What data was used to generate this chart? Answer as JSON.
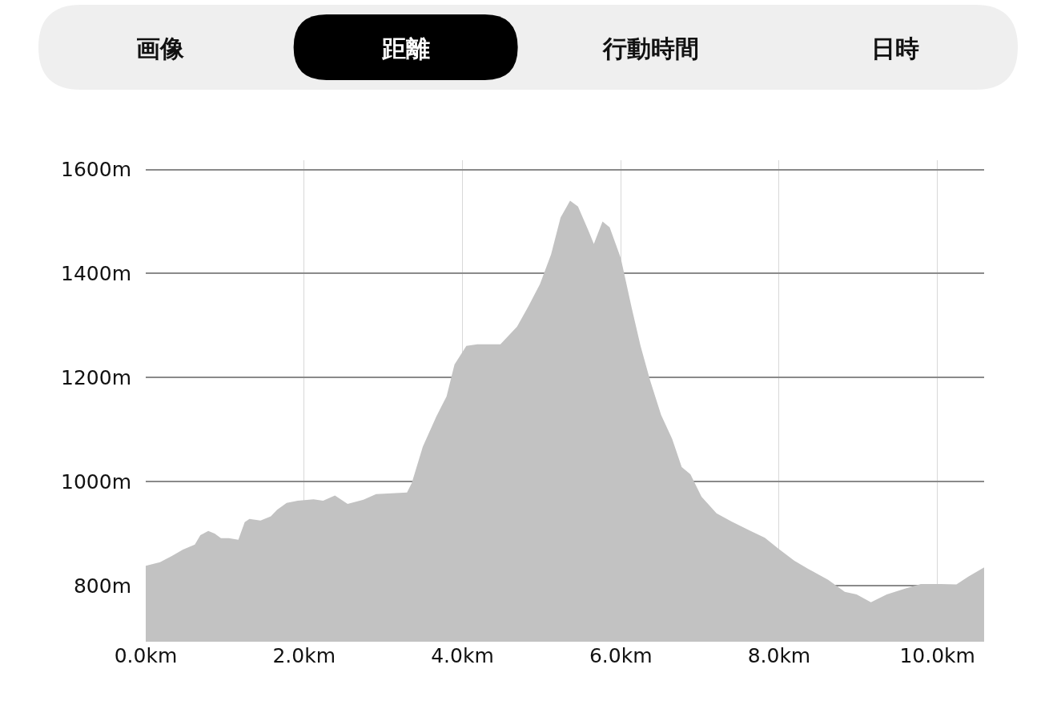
{
  "chart_data": {
    "type": "area",
    "annotations": [
      "画像",
      "距離",
      "行動時間",
      "日時"
    ],
    "x": [
      0,
      0.18,
      0.33,
      0.4,
      0.47,
      0.62,
      0.69,
      0.79,
      0.87,
      0.95,
      1.05,
      1.17,
      1.25,
      1.31,
      1.45,
      1.58,
      1.66,
      1.78,
      1.92,
      2.12,
      2.24,
      2.39,
      2.55,
      2.75,
      2.91,
      3.3,
      3.36,
      3.5,
      3.67,
      3.8,
      3.9,
      4.05,
      4.19,
      4.48,
      4.69,
      4.83,
      4.98,
      5.12,
      5.24,
      5.36,
      5.46,
      5.59,
      5.66,
      5.77,
      5.86,
      6.0,
      6.14,
      6.25,
      6.37,
      6.51,
      6.65,
      6.77,
      6.88,
      7.02,
      7.21,
      7.4,
      7.64,
      7.82,
      7.99,
      8.19,
      8.37,
      8.62,
      8.83,
      8.98,
      9.16,
      9.36,
      9.59,
      9.79,
      10.04,
      10.24,
      10.39,
      10.59
    ],
    "series": [
      {
        "color": "#c2c2c2",
        "values": [
          838,
          845,
          857,
          863,
          869,
          879,
          897,
          905,
          900,
          891,
          891,
          888,
          922,
          928,
          925,
          933,
          946,
          959,
          963,
          966,
          963,
          973,
          957,
          965,
          976,
          979,
          997,
          1067,
          1125,
          1164,
          1225,
          1261,
          1264,
          1264,
          1298,
          1336,
          1380,
          1437,
          1508,
          1540,
          1529,
          1483,
          1457,
          1500,
          1489,
          1430,
          1333,
          1261,
          1195,
          1128,
          1082,
          1028,
          1014,
          971,
          939,
          923,
          905,
          892,
          871,
          848,
          832,
          811,
          788,
          783,
          768,
          783,
          794,
          803,
          803,
          802,
          817,
          835
        ]
      }
    ],
    "xlim": [
      0,
      10.59
    ],
    "xticks": [
      {
        "value": 0,
        "label": "0.0km"
      },
      {
        "value": 2,
        "label": "2.0km"
      },
      {
        "value": 4,
        "label": "4.0km"
      },
      {
        "value": 6,
        "label": "6.0km"
      },
      {
        "value": 8,
        "label": "8.0km"
      },
      {
        "value": 10,
        "label": "10.0km"
      }
    ],
    "ylim": [
      692,
      1618
    ],
    "yticks": [
      {
        "value": 800,
        "label": "800m"
      },
      {
        "value": 1000,
        "label": "1000m"
      },
      {
        "value": 1200,
        "label": "1200m"
      },
      {
        "value": 1400,
        "label": "1400m"
      },
      {
        "value": 1600,
        "label": "1600m"
      }
    ],
    "grid": true
  }
}
